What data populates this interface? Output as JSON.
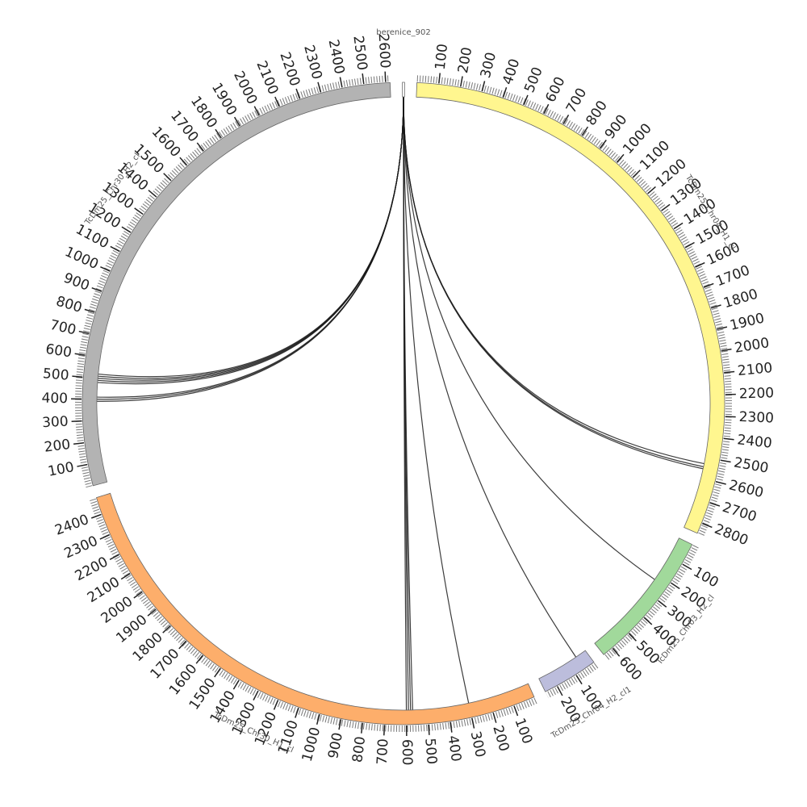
{
  "chart_data": {
    "type": "chord",
    "segments": [
      {
        "name": "berenice_902",
        "length": 10,
        "color": "#ffffff",
        "ticks": []
      },
      {
        "name": "TcDm25_Chr04_H1_cl",
        "length": 2850,
        "color": "#fff68f",
        "ticks": [
          100,
          200,
          300,
          400,
          500,
          600,
          700,
          800,
          900,
          1000,
          1100,
          1200,
          1300,
          1400,
          1500,
          1600,
          1700,
          1800,
          1900,
          2000,
          2100,
          2200,
          2300,
          2400,
          2500,
          2600,
          2700,
          2800
        ]
      },
      {
        "name": "TcDm25_Chr03_H2_cl",
        "length": 650,
        "color": "#a1d99b",
        "ticks": [
          100,
          200,
          300,
          400,
          500,
          600
        ]
      },
      {
        "name": "TcDm25_Chr04_H2_cl1",
        "length": 260,
        "color": "#bcbddc",
        "ticks": [
          100,
          200
        ]
      },
      {
        "name": "TcDm25_Chr30_H1_cl",
        "length": 2480,
        "color": "#fdae6b",
        "ticks": [
          100,
          200,
          300,
          400,
          500,
          600,
          700,
          800,
          900,
          1000,
          1100,
          1200,
          1300,
          1400,
          1500,
          1600,
          1700,
          1800,
          1900,
          2000,
          2100,
          2200,
          2300,
          2400
        ]
      },
      {
        "name": "TcDm25_Chr30_H2_cl",
        "length": 2620,
        "color": "#b3b3b3",
        "ticks": [
          100,
          200,
          300,
          400,
          500,
          600,
          700,
          800,
          900,
          1000,
          1100,
          1200,
          1300,
          1400,
          1500,
          1600,
          1700,
          1800,
          1900,
          2000,
          2100,
          2200,
          2300,
          2400,
          2500,
          2600
        ]
      }
    ],
    "links": [
      {
        "source": "berenice_902",
        "source_pos": 5,
        "target": "TcDm25_Chr30_H2_cl",
        "target_pos": 390
      },
      {
        "source": "berenice_902",
        "source_pos": 5,
        "target": "TcDm25_Chr30_H2_cl",
        "target_pos": 400
      },
      {
        "source": "berenice_902",
        "source_pos": 5,
        "target": "TcDm25_Chr30_H2_cl",
        "target_pos": 410
      },
      {
        "source": "berenice_902",
        "source_pos": 5,
        "target": "TcDm25_Chr30_H2_cl",
        "target_pos": 480
      },
      {
        "source": "berenice_902",
        "source_pos": 5,
        "target": "TcDm25_Chr30_H2_cl",
        "target_pos": 490
      },
      {
        "source": "berenice_902",
        "source_pos": 5,
        "target": "TcDm25_Chr30_H2_cl",
        "target_pos": 500
      },
      {
        "source": "berenice_902",
        "source_pos": 5,
        "target": "TcDm25_Chr30_H2_cl",
        "target_pos": 510
      },
      {
        "source": "berenice_902",
        "source_pos": 5,
        "target": "TcDm25_Chr30_H2_cl",
        "target_pos": 520
      },
      {
        "source": "berenice_902",
        "source_pos": 5,
        "target": "TcDm25_Chr04_H1_cl",
        "target_pos": 2530
      },
      {
        "source": "berenice_902",
        "source_pos": 5,
        "target": "TcDm25_Chr04_H1_cl",
        "target_pos": 2545
      },
      {
        "source": "berenice_902",
        "source_pos": 5,
        "target": "TcDm25_Chr04_H1_cl",
        "target_pos": 2555
      },
      {
        "source": "berenice_902",
        "source_pos": 5,
        "target": "TcDm25_Chr03_H2_cl",
        "target_pos": 230
      },
      {
        "source": "berenice_902",
        "source_pos": 5,
        "target": "TcDm25_Chr04_H2_cl1",
        "target_pos": 55
      },
      {
        "source": "berenice_902",
        "source_pos": 5,
        "target": "TcDm25_Chr30_H1_cl",
        "target_pos": 300
      },
      {
        "source": "berenice_902",
        "source_pos": 5,
        "target": "TcDm25_Chr30_H1_cl",
        "target_pos": 570
      },
      {
        "source": "berenice_902",
        "source_pos": 5,
        "target": "TcDm25_Chr30_H1_cl",
        "target_pos": 580
      },
      {
        "source": "berenice_902",
        "source_pos": 5,
        "target": "TcDm25_Chr30_H1_cl",
        "target_pos": 590
      },
      {
        "source": "berenice_902",
        "source_pos": 5,
        "target": "TcDm25_Chr30_H1_cl",
        "target_pos": 600
      }
    ]
  }
}
